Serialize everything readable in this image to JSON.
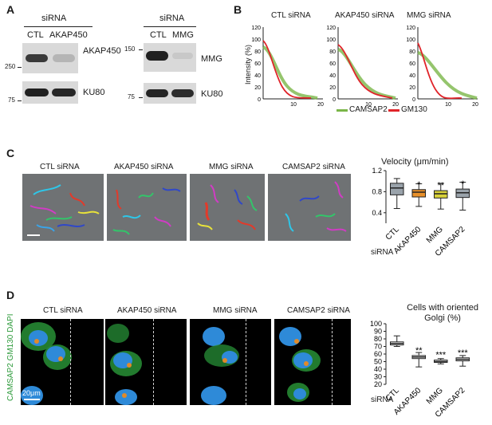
{
  "panels": {
    "A": "A",
    "B": "B",
    "C": "C",
    "D": "D"
  },
  "blotA1": {
    "header": "siRNA",
    "lanes": [
      "CTL",
      "AKAP450"
    ],
    "mw_top": "250",
    "mw_bottom": "75",
    "labels": [
      "AKAP450",
      "KU80"
    ]
  },
  "blotA2": {
    "header": "siRNA",
    "lanes": [
      "CTL",
      "MMG"
    ],
    "mw_top": "150",
    "mw_bottom": "75",
    "labels": [
      "MMG",
      "KU80"
    ]
  },
  "panelB": {
    "ylabel": "Intensity (%)",
    "titles": [
      "CTL siRNA",
      "AKAP450 siRNA",
      "MMG siRNA"
    ],
    "yticks": [
      "0",
      "20",
      "40",
      "60",
      "80",
      "100",
      "120"
    ],
    "xticks": [
      "10",
      "20"
    ],
    "legend": [
      {
        "name": "CAMSAP2",
        "color": "#7ab648"
      },
      {
        "name": "GM130",
        "color": "#e0242a"
      }
    ]
  },
  "panelC": {
    "titles": [
      "CTL siRNA",
      "AKAP450 siRNA",
      "MMG siRNA",
      "CAMSAP2 siRNA"
    ],
    "siRNA_label": "siRNA"
  },
  "panelD": {
    "titles": [
      "CTL siRNA",
      "AKAP450 siRNA",
      "MMG siRNA",
      "CAMSAP2 siRNA"
    ],
    "side_label": "CAMSAP2 GM130 DAPI",
    "scale": "20μm",
    "siRNA_label": "siRNA"
  },
  "chart_data": [
    {
      "type": "box",
      "title": "Velocity (μm/min)",
      "categories": [
        "CTL",
        "AKAP450",
        "MMG",
        "CAMSAP2"
      ],
      "colors": [
        "#9aa3ab",
        "#e8902a",
        "#d8d23a",
        "#9aa3ab"
      ],
      "ylim": [
        0.2,
        1.2
      ],
      "yticks": [
        0.4,
        0.8,
        1.2
      ],
      "boxes": [
        {
          "min": 0.48,
          "q1": 0.74,
          "median": 0.87,
          "q3": 0.96,
          "max": 1.05
        },
        {
          "min": 0.52,
          "q1": 0.7,
          "median": 0.79,
          "q3": 0.84,
          "max": 0.95
        },
        {
          "min": 0.47,
          "q1": 0.68,
          "median": 0.76,
          "q3": 0.82,
          "max": 0.96
        },
        {
          "min": 0.45,
          "q1": 0.69,
          "median": 0.78,
          "q3": 0.85,
          "max": 0.98
        }
      ],
      "annotations": [
        "",
        "*",
        "**",
        "*"
      ]
    },
    {
      "type": "box",
      "title": "Cells with oriented Golgi (%)",
      "categories": [
        "CTL",
        "AKAP450",
        "MMG",
        "CAMSAP2"
      ],
      "ylim": [
        20,
        100
      ],
      "yticks": [
        20,
        30,
        40,
        50,
        60,
        70,
        80,
        90,
        100
      ],
      "boxes": [
        {
          "min": 70,
          "q1": 72,
          "median": 74,
          "q3": 76,
          "max": 84
        },
        {
          "min": 43,
          "q1": 54,
          "median": 56,
          "q3": 58,
          "max": 62
        },
        {
          "min": 47,
          "q1": 49,
          "median": 50,
          "q3": 52,
          "max": 54
        },
        {
          "min": 44,
          "q1": 51,
          "median": 53,
          "q3": 55,
          "max": 58
        }
      ],
      "annotations": [
        "",
        "**",
        "***",
        "***"
      ]
    }
  ]
}
